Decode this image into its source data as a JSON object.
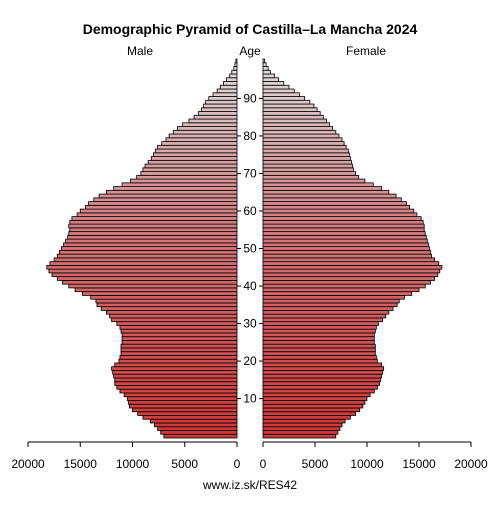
{
  "chart_data": {
    "type": "bar",
    "title": "Demographic Pyramid of Castilla–La Mancha 2024",
    "source": "www.iz.sk/RES42",
    "left_label": "Male",
    "center_label": "Age",
    "right_label": "Female",
    "x_ticks": {
      "male": [
        "20000",
        "15000",
        "10000",
        "5000",
        "0"
      ],
      "female": [
        "0",
        "5000",
        "10000",
        "15000",
        "20000"
      ]
    },
    "x_tick_values": [
      0,
      5000,
      10000,
      15000,
      20000
    ],
    "xlim": [
      0,
      20000
    ],
    "age_ticks": [
      "10",
      "20",
      "30",
      "40",
      "50",
      "60",
      "70",
      "80",
      "90"
    ],
    "age_tick_values": [
      10,
      20,
      30,
      40,
      50,
      60,
      70,
      80,
      90
    ],
    "ages": [
      0,
      1,
      2,
      3,
      4,
      5,
      6,
      7,
      8,
      9,
      10,
      11,
      12,
      13,
      14,
      15,
      16,
      17,
      18,
      19,
      20,
      21,
      22,
      23,
      24,
      25,
      26,
      27,
      28,
      29,
      30,
      31,
      32,
      33,
      34,
      35,
      36,
      37,
      38,
      39,
      40,
      41,
      42,
      43,
      44,
      45,
      46,
      47,
      48,
      49,
      50,
      51,
      52,
      53,
      54,
      55,
      56,
      57,
      58,
      59,
      60,
      61,
      62,
      63,
      64,
      65,
      66,
      67,
      68,
      69,
      70,
      71,
      72,
      73,
      74,
      75,
      76,
      77,
      78,
      79,
      80,
      81,
      82,
      83,
      84,
      85,
      86,
      87,
      88,
      89,
      90,
      91,
      92,
      93,
      94,
      95,
      96,
      97,
      98,
      99,
      100
    ],
    "series": [
      {
        "name": "Male",
        "values": [
          7000,
          7300,
          7600,
          7900,
          8300,
          9000,
          9500,
          10000,
          10300,
          10400,
          10500,
          10800,
          11200,
          11500,
          11700,
          11700,
          11800,
          11900,
          12000,
          11700,
          11300,
          11200,
          11100,
          11100,
          11100,
          11000,
          11000,
          11000,
          11100,
          11200,
          11500,
          12000,
          12200,
          12500,
          13000,
          13400,
          13500,
          14000,
          14800,
          15500,
          16100,
          16700,
          17200,
          17700,
          18000,
          18200,
          17900,
          17500,
          17200,
          17000,
          16800,
          16600,
          16400,
          16200,
          16100,
          16000,
          16100,
          16000,
          15800,
          15300,
          15000,
          14500,
          14200,
          13700,
          13200,
          12500,
          11800,
          11000,
          10200,
          9600,
          9200,
          9000,
          8800,
          8500,
          8200,
          8000,
          7800,
          7600,
          7200,
          6800,
          6500,
          6100,
          5700,
          5200,
          4600,
          4100,
          3700,
          3400,
          3200,
          3000,
          2700,
          2300,
          1900,
          1600,
          1300,
          1000,
          700,
          500,
          300,
          200,
          100
        ]
      },
      {
        "name": "Female",
        "values": [
          7000,
          7200,
          7400,
          7600,
          7900,
          8400,
          8900,
          9300,
          9600,
          9800,
          10000,
          10300,
          10700,
          11000,
          11200,
          11300,
          11400,
          11500,
          11600,
          11400,
          11000,
          10900,
          10800,
          10800,
          10800,
          10700,
          10700,
          10700,
          10800,
          10900,
          11100,
          11500,
          11800,
          12100,
          12500,
          12900,
          13100,
          13600,
          14300,
          15000,
          15600,
          16100,
          16500,
          16800,
          17000,
          17200,
          16900,
          16500,
          16200,
          16100,
          16000,
          15900,
          15800,
          15700,
          15600,
          15500,
          15500,
          15400,
          15200,
          14800,
          14500,
          14100,
          13800,
          13300,
          12800,
          12100,
          11400,
          10600,
          9800,
          9200,
          8900,
          8700,
          8600,
          8500,
          8400,
          8300,
          8200,
          8000,
          7800,
          7600,
          7300,
          7000,
          6700,
          6400,
          6100,
          5800,
          5500,
          5200,
          4900,
          4500,
          4000,
          3500,
          3000,
          2500,
          2000,
          1500,
          1100,
          700,
          500,
          300,
          150
        ]
      }
    ]
  }
}
